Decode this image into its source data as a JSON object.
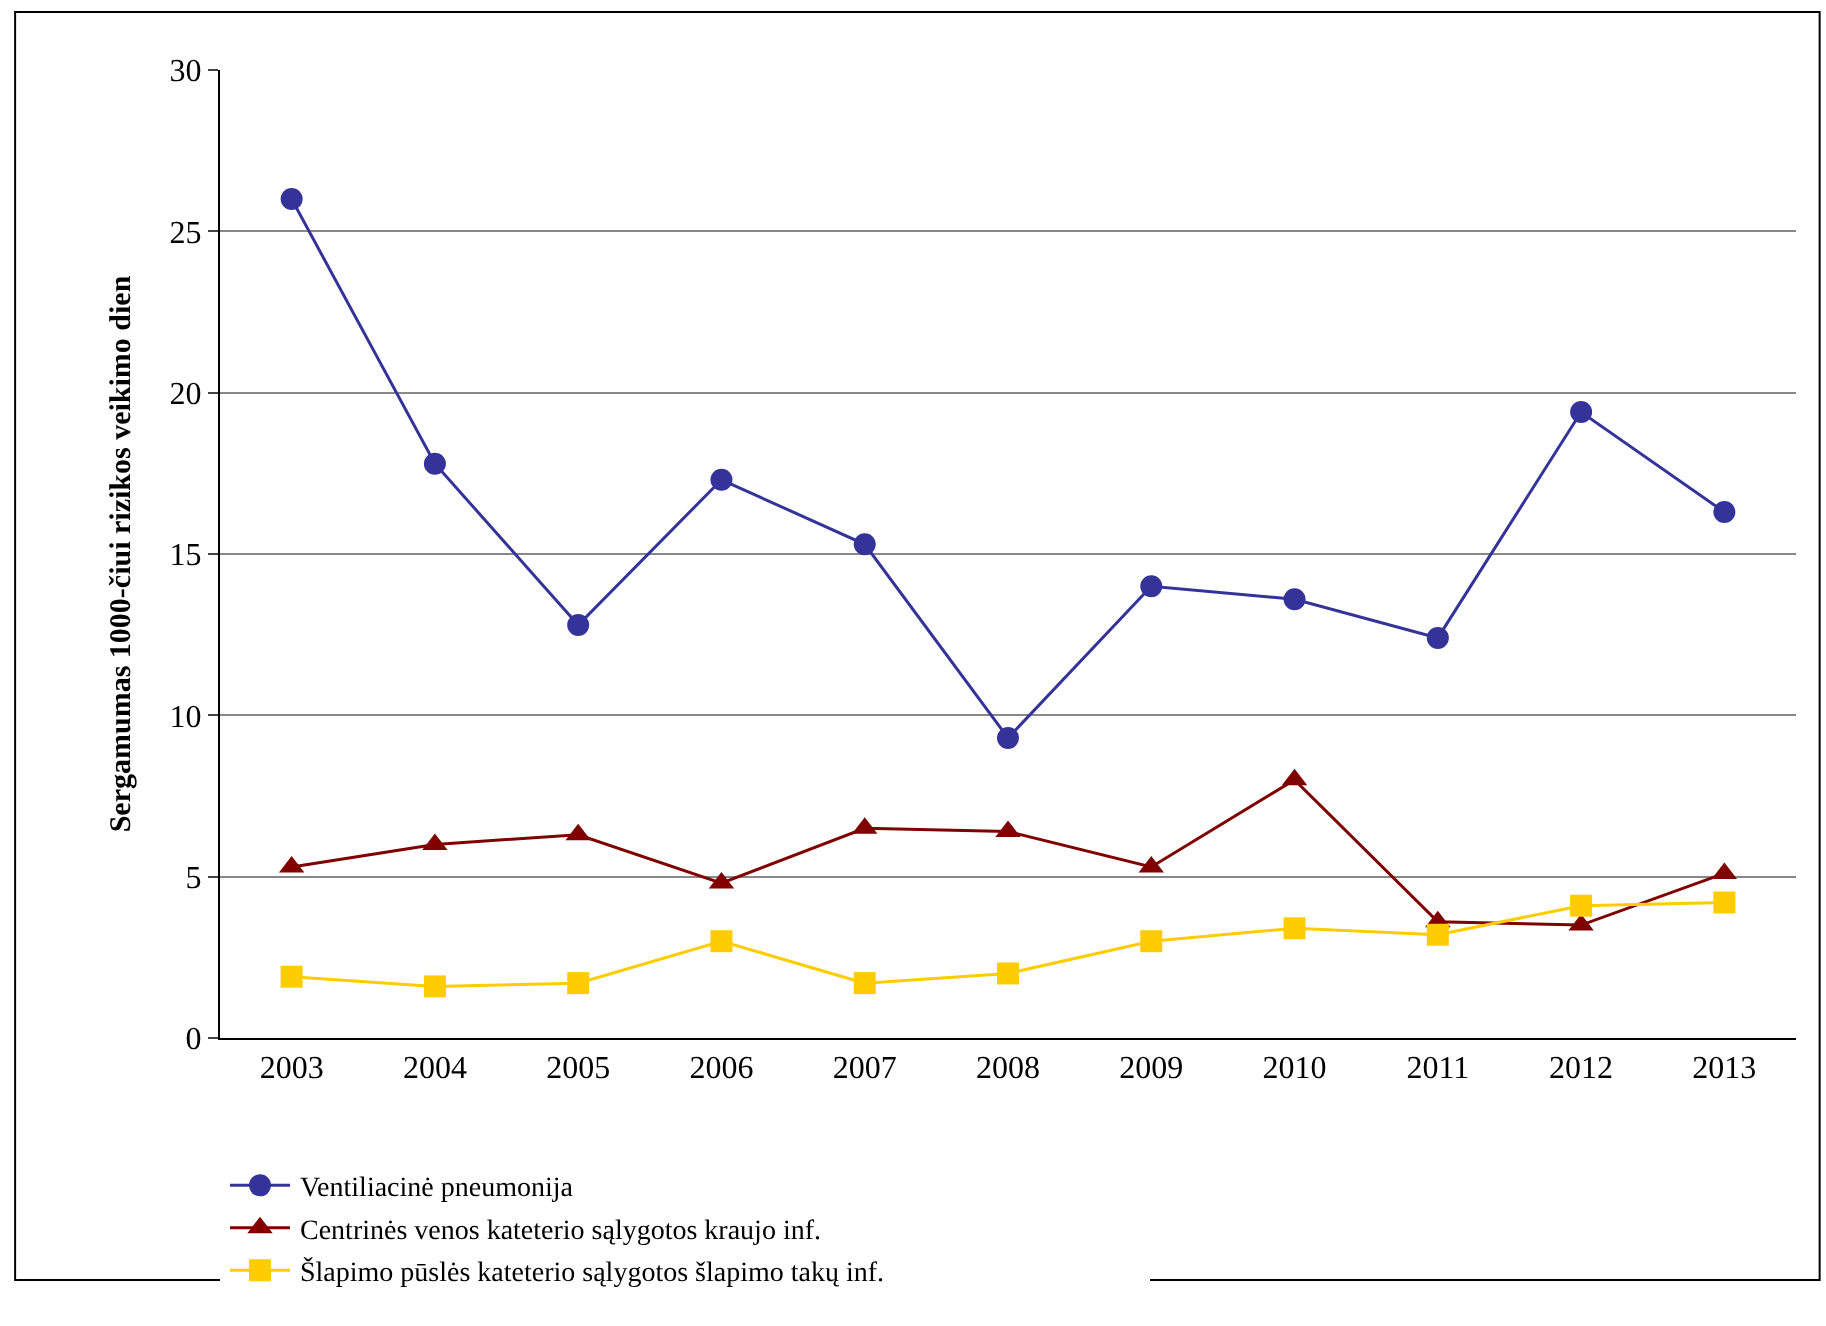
{
  "chart_data": {
    "type": "line",
    "ylabel": "Sergamumas 1000-čiui rizikos veikimo dien",
    "categories": [
      "2003",
      "2004",
      "2005",
      "2006",
      "2007",
      "2008",
      "2009",
      "2010",
      "2011",
      "2012",
      "2013"
    ],
    "series": [
      {
        "name": "Ventiliacinė pneumonija",
        "color": "#333399",
        "marker": "circle",
        "values": [
          26,
          17.8,
          12.8,
          17.3,
          15.3,
          9.3,
          14.0,
          13.6,
          12.4,
          19.4,
          16.3
        ]
      },
      {
        "name": "Centrinės venos kateterio sąlygotos kraujo inf.",
        "color": "#800000",
        "marker": "triangle",
        "values": [
          5.3,
          6.0,
          6.3,
          4.8,
          6.5,
          6.4,
          5.3,
          8.0,
          3.6,
          3.5,
          5.1
        ]
      },
      {
        "name": "Šlapimo pūslės kateterio sąlygotos šlapimo takų inf.",
        "color": "#ffcc00",
        "marker": "square",
        "values": [
          1.9,
          1.6,
          1.7,
          3.0,
          1.7,
          2.0,
          3.0,
          3.4,
          3.2,
          4.1,
          4.2
        ]
      }
    ],
    "ylim": [
      0,
      30
    ],
    "yticks": [
      0,
      5,
      10,
      15,
      20,
      25,
      30
    ],
    "grid": "y",
    "legend": "bottom",
    "line_style": "solid"
  }
}
